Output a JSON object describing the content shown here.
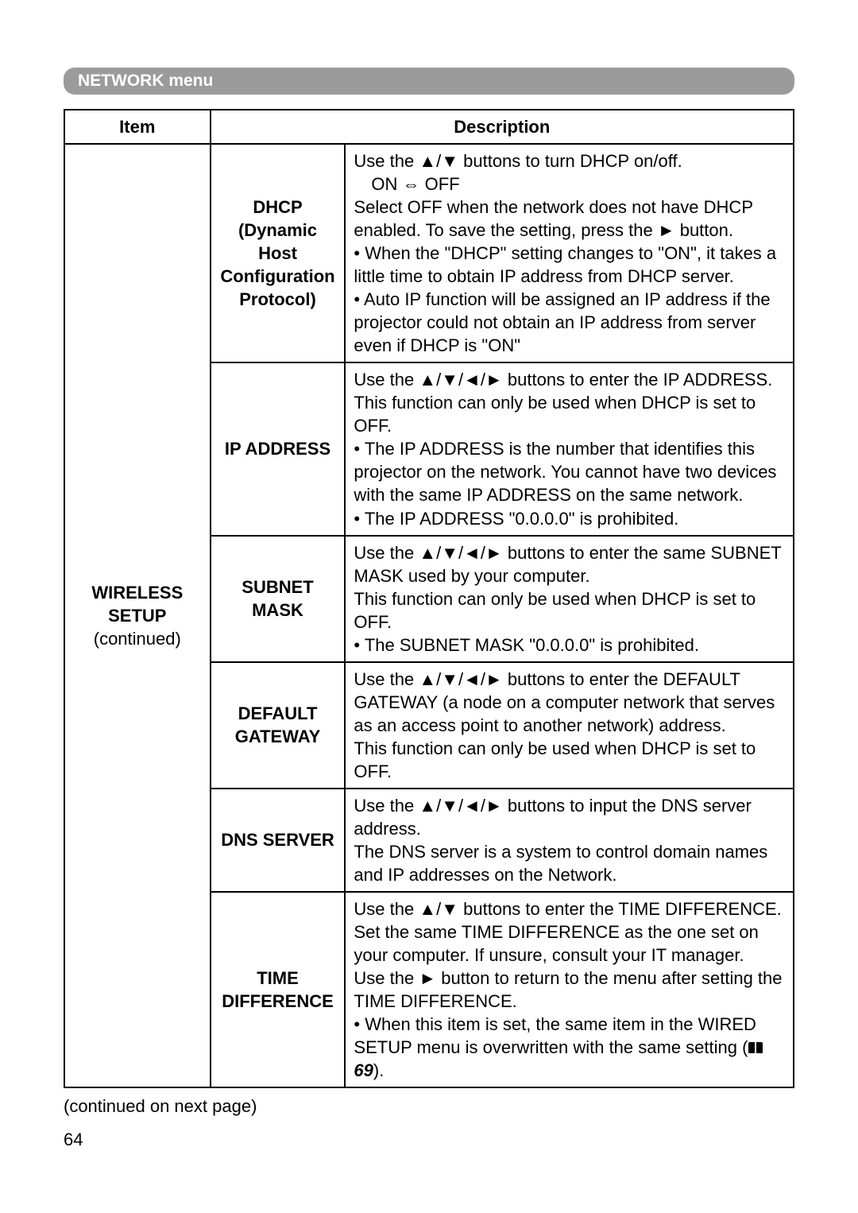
{
  "section_header": "NETWORK menu",
  "headers": {
    "item": "Item",
    "description": "Description"
  },
  "item_col": {
    "title_line1": "WIRELESS",
    "title_line2": "SETUP",
    "continued": "(continued)"
  },
  "rows": [
    {
      "sub_line1": "DHCP",
      "sub_line2": "(Dynamic Host",
      "sub_line3": "Configuration",
      "sub_line4": "Protocol)",
      "desc_p1": "Use the ▲/▼ buttons to turn DHCP on/off.",
      "desc_p2": "ON ⇔ OFF",
      "desc_p3": "Select OFF when the network does not have DHCP enabled. To save the setting, press the ► button.",
      "desc_p4": "• When the \"DHCP\" setting changes to \"ON\", it takes a little time to obtain IP address from DHCP server.",
      "desc_p5": "• Auto IP function will be assigned an IP address if the projector could not obtain an IP address from server even if DHCP is \"ON\""
    },
    {
      "sub": "IP ADDRESS",
      "desc_p1": "Use the ▲/▼/◄/► buttons to enter the IP ADDRESS.",
      "desc_p2": "This function can only be used when DHCP is set to OFF.",
      "desc_p3": "• The IP ADDRESS is the number that identifies this projector on the network. You cannot have two devices with the same IP ADDRESS on the same network.",
      "desc_p4": "• The IP ADDRESS \"0.0.0.0\" is prohibited."
    },
    {
      "sub_line1": "SUBNET",
      "sub_line2": "MASK",
      "desc_p1": "Use the ▲/▼/◄/► buttons to enter the same SUBNET MASK used by your computer.",
      "desc_p2": "This function can only be used when DHCP is set to OFF.",
      "desc_p3": "• The SUBNET MASK \"0.0.0.0\" is prohibited."
    },
    {
      "sub_line1": "DEFAULT",
      "sub_line2": "GATEWAY",
      "desc_p1": "Use the ▲/▼/◄/► buttons to enter the DEFAULT GATEWAY (a node on a computer network that serves as an access point to another network) address.",
      "desc_p2": "This function can only be used when DHCP is set to OFF."
    },
    {
      "sub": "DNS SERVER",
      "desc_p1": "Use the ▲/▼/◄/► buttons to input the DNS server address.",
      "desc_p2": "The DNS server is a system to control domain names and IP addresses on the Network."
    },
    {
      "sub_line1": "TIME",
      "sub_line2": "DIFFERENCE",
      "desc_p1": "Use the ▲/▼ buttons to enter the TIME DIFFERENCE.",
      "desc_p2": "Set the same TIME DIFFERENCE as the one set on your computer. If unsure, consult your IT manager.",
      "desc_p3": "Use the ► button to return to the menu after setting the TIME DIFFERENCE.",
      "desc_p4a": "• When this item is set, the same item in the WIRED SETUP menu is overwritten with the same setting (",
      "desc_p4b": "69",
      "desc_p4c": ")."
    }
  ],
  "footer": "(continued on next page)",
  "page_number": "64"
}
